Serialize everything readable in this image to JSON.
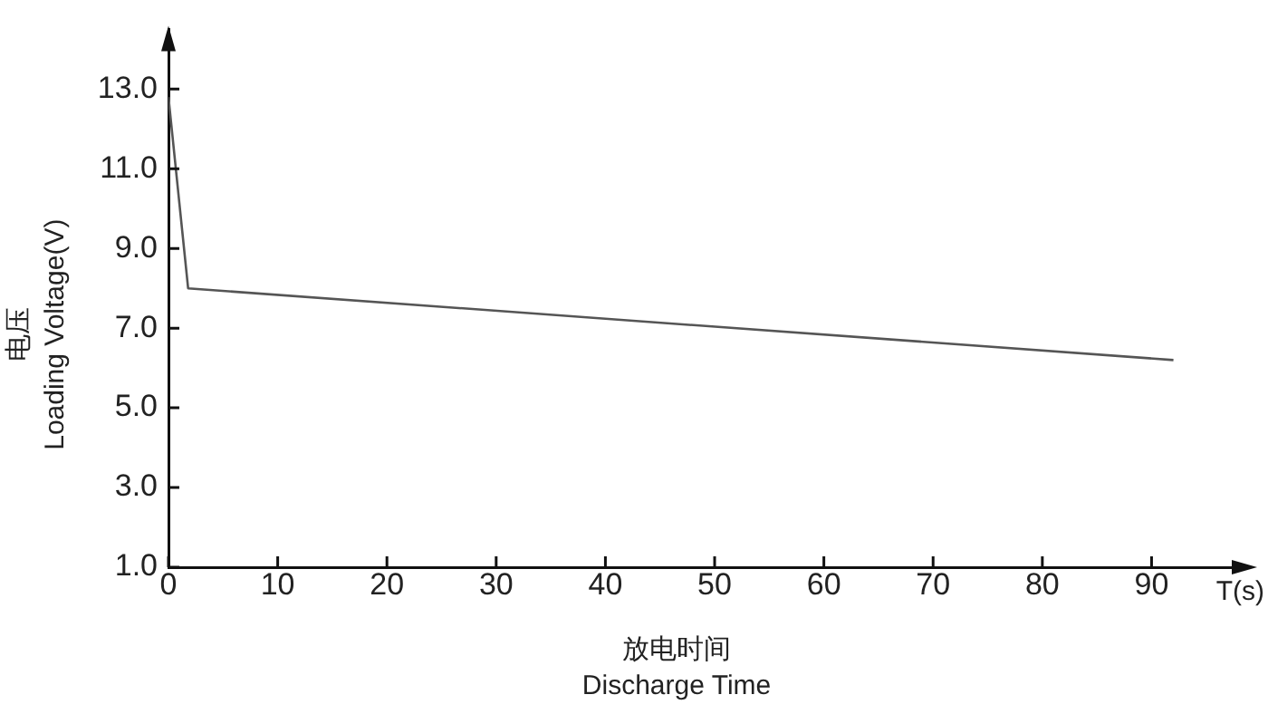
{
  "chart_data": {
    "type": "line",
    "xlabel": "放电时间\nDischarge Time",
    "ylabel": "电压\nLoading Voltage(V)",
    "annotations": [
      "T(s)"
    ],
    "series": [
      {
        "color": "#555555",
        "x": [
          0,
          1.8,
          92
        ],
        "values": [
          12.8,
          8.0,
          6.2
        ]
      }
    ],
    "xlim": [
      0,
      99
    ],
    "xticks": [
      0,
      10,
      20,
      30,
      40,
      50,
      60,
      70,
      80,
      90
    ],
    "ylim": [
      1,
      14.5
    ],
    "yticks": [
      {
        "value": 1,
        "label": "1.0"
      },
      {
        "value": 3,
        "label": "3.0"
      },
      {
        "value": 5,
        "label": "5.0"
      },
      {
        "value": 7,
        "label": "7.0"
      },
      {
        "value": 9,
        "label": "9.0"
      },
      {
        "value": 11,
        "label": "11.0"
      },
      {
        "value": 13,
        "label": "13.0"
      }
    ],
    "grid": false,
    "legend": false,
    "marker": "none",
    "line_style": "solid"
  }
}
